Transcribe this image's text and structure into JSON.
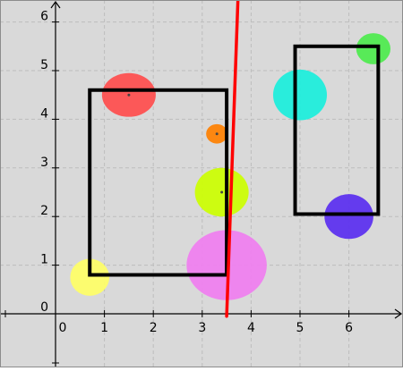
{
  "graph": {
    "background_color": "#d9d9d9",
    "grid_color": "#bdbdbd",
    "x_range": [
      -1.1,
      7.0
    ],
    "y_range": [
      -1.1,
      6.5
    ],
    "x_ticks": [
      {
        "value": 0,
        "label": "0"
      },
      {
        "value": 1,
        "label": "1"
      },
      {
        "value": 2,
        "label": "2"
      },
      {
        "value": 3,
        "label": "3"
      },
      {
        "value": 4,
        "label": "4"
      },
      {
        "value": 5,
        "label": "5"
      },
      {
        "value": 6,
        "label": "6"
      }
    ],
    "y_ticks": [
      {
        "value": 0,
        "label": "0"
      },
      {
        "value": 1,
        "label": "1"
      },
      {
        "value": 2,
        "label": "2"
      },
      {
        "value": 3,
        "label": "3"
      },
      {
        "value": 4,
        "label": "4"
      },
      {
        "value": 5,
        "label": "5"
      },
      {
        "value": 6,
        "label": "6"
      }
    ],
    "rectangles": [
      {
        "name": "left",
        "x1": 0.7,
        "y1": 0.8,
        "x2": 3.5,
        "y2": 4.6,
        "color": "#000000"
      },
      {
        "name": "right",
        "x1": 4.9,
        "y1": 2.05,
        "x2": 6.6,
        "y2": 5.5,
        "color": "#000000"
      }
    ],
    "circles": [
      {
        "name": "red",
        "cx": 1.5,
        "cy": 4.5,
        "rx": 0.55,
        "ry": 0.45,
        "color": "#ff4d4d",
        "center_dot": true
      },
      {
        "name": "orange",
        "cx": 3.3,
        "cy": 3.7,
        "rx": 0.22,
        "ry": 0.2,
        "color": "#ff8000",
        "center_dot": true
      },
      {
        "name": "lime",
        "cx": 3.4,
        "cy": 2.5,
        "rx": 0.55,
        "ry": 0.5,
        "color": "#ccff00",
        "center_dot": true
      },
      {
        "name": "magenta",
        "cx": 3.5,
        "cy": 1.0,
        "rx": 0.82,
        "ry": 0.72,
        "color": "#f07ef0",
        "center_dot": false
      },
      {
        "name": "yellow",
        "cx": 0.7,
        "cy": 0.75,
        "rx": 0.4,
        "ry": 0.38,
        "color": "#ffff66",
        "center_dot": false
      },
      {
        "name": "cyan",
        "cx": 5.0,
        "cy": 4.5,
        "rx": 0.55,
        "ry": 0.52,
        "color": "#1aefdc",
        "center_dot": false
      },
      {
        "name": "green",
        "cx": 6.5,
        "cy": 5.45,
        "rx": 0.35,
        "ry": 0.32,
        "color": "#4dec4d",
        "center_dot": false
      },
      {
        "name": "blue",
        "cx": 6.0,
        "cy": 2.0,
        "rx": 0.5,
        "ry": 0.46,
        "color": "#5a2ef0",
        "center_dot": false
      }
    ],
    "line": {
      "x1": 3.5,
      "y1": -0.05,
      "x2": 3.75,
      "y2": 7.0,
      "color": "#ff0000"
    }
  }
}
